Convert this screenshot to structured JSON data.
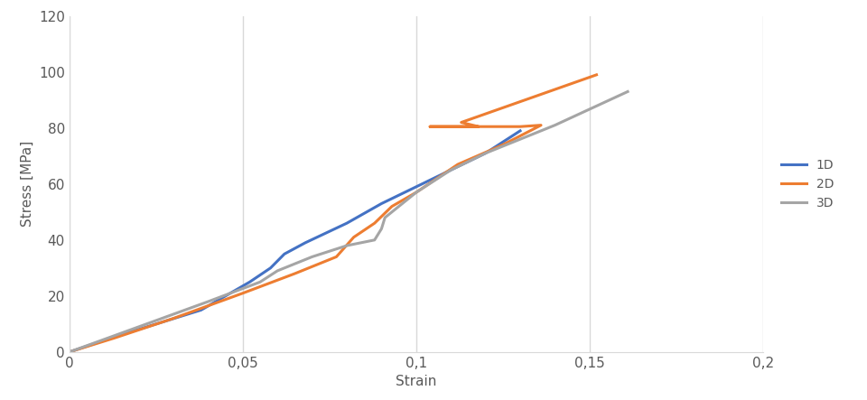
{
  "chart_data": {
    "type": "line",
    "x_label": "Strain",
    "y_label": "Stress [MPa]",
    "xlim": [
      0,
      0.2
    ],
    "xticks": [
      {
        "value": 0,
        "label": "0"
      },
      {
        "value": 0.05,
        "label": "0,05"
      },
      {
        "value": 0.1,
        "label": "0,1"
      },
      {
        "value": 0.15,
        "label": "0,15"
      },
      {
        "value": 0.2,
        "label": "0,2"
      }
    ],
    "ylim": [
      0,
      120
    ],
    "yticks": [
      0,
      20,
      40,
      60,
      80,
      100,
      120
    ],
    "grid": true,
    "legend": "right",
    "series": [
      {
        "name": "1D",
        "color": "#4472c4",
        "x": [
          0,
          0.012,
          0.025,
          0.038,
          0.045,
          0.052,
          0.058,
          0.062,
          0.068,
          0.08,
          0.09,
          0.1,
          0.11,
          0.12,
          0.13
        ],
        "values": [
          0,
          5,
          10,
          15,
          20,
          25,
          30,
          35,
          39,
          46,
          53,
          59,
          65,
          71,
          79
        ]
      },
      {
        "name": "2D",
        "color": "#ed7d31",
        "x": [
          0,
          0.013,
          0.03,
          0.05,
          0.065,
          0.077,
          0.082,
          0.088,
          0.093,
          0.1,
          0.112,
          0.125,
          0.136,
          0.13,
          0.104,
          0.118,
          0.113,
          0.152
        ],
        "values": [
          0,
          5,
          12,
          21,
          28,
          34,
          41,
          46,
          52,
          57,
          67,
          74,
          81,
          80.5,
          80.5,
          80.5,
          82,
          99
        ]
      },
      {
        "name": "3D",
        "color": "#a5a5a5",
        "x": [
          0,
          0.02,
          0.04,
          0.055,
          0.06,
          0.07,
          0.08,
          0.088,
          0.09,
          0.091,
          0.1,
          0.11,
          0.12,
          0.14,
          0.161
        ],
        "values": [
          0,
          9,
          18,
          25,
          29,
          34,
          38,
          40,
          44,
          48,
          57,
          65,
          71,
          81,
          93
        ]
      }
    ]
  }
}
